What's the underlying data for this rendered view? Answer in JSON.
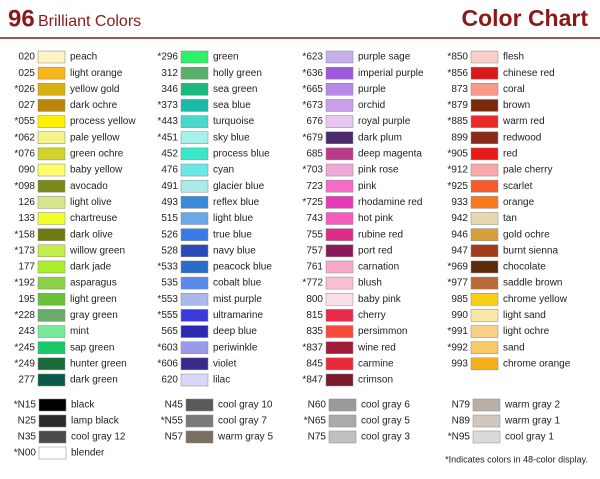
{
  "header": {
    "number": "96",
    "subtitle": "Brilliant Colors",
    "title": "Color Chart"
  },
  "columns": [
    [
      {
        "code": "020",
        "name": "peach",
        "swatch": "#fdf3c4"
      },
      {
        "code": "025",
        "name": "light orange",
        "swatch": "#f7b51c"
      },
      {
        "code": "*026",
        "name": "yellow gold",
        "swatch": "#d8b00f"
      },
      {
        "code": "027",
        "name": "dark ochre",
        "swatch": "#b8860b"
      },
      {
        "code": "*055",
        "name": "process yellow",
        "swatch": "#ffef00"
      },
      {
        "code": "*062",
        "name": "pale yellow",
        "swatch": "#f3f58a"
      },
      {
        "code": "*076",
        "name": "green ochre",
        "swatch": "#d1d32a"
      },
      {
        "code": "090",
        "name": "baby yellow",
        "swatch": "#fffd6a"
      },
      {
        "code": "*098",
        "name": "avocado",
        "swatch": "#7a8a1a"
      },
      {
        "code": "126",
        "name": "light olive",
        "swatch": "#d6e88a"
      },
      {
        "code": "133",
        "name": "chartreuse",
        "swatch": "#f0ff2a"
      },
      {
        "code": "*158",
        "name": "dark olive",
        "swatch": "#6c7c10"
      },
      {
        "code": "*173",
        "name": "willow green",
        "swatch": "#c3ed4a"
      },
      {
        "code": "177",
        "name": "dark jade",
        "swatch": "#a8f02a"
      },
      {
        "code": "*192",
        "name": "asparagus",
        "swatch": "#8ad04a"
      },
      {
        "code": "195",
        "name": "light green",
        "swatch": "#6ac23a"
      },
      {
        "code": "*228",
        "name": "gray green",
        "swatch": "#6aaa6a"
      },
      {
        "code": "243",
        "name": "mint",
        "swatch": "#7ae89a"
      },
      {
        "code": "*245",
        "name": "sap green",
        "swatch": "#1ac86a"
      },
      {
        "code": "*249",
        "name": "hunter green",
        "swatch": "#1a6a3a"
      },
      {
        "code": "277",
        "name": "dark green",
        "swatch": "#0a5a4a"
      }
    ],
    [
      {
        "code": "*296",
        "name": "green",
        "swatch": "#2ef06a"
      },
      {
        "code": "312",
        "name": "holly green",
        "swatch": "#5aae6a"
      },
      {
        "code": "346",
        "name": "sea green",
        "swatch": "#1ab87a"
      },
      {
        "code": "*373",
        "name": "sea blue",
        "swatch": "#1abaaa"
      },
      {
        "code": "*443",
        "name": "turquoise",
        "swatch": "#4ad8ca"
      },
      {
        "code": "*451",
        "name": "sky blue",
        "swatch": "#a8f0ea"
      },
      {
        "code": "452",
        "name": "process blue",
        "swatch": "#3ae8c8"
      },
      {
        "code": "476",
        "name": "cyan",
        "swatch": "#6ae8e8"
      },
      {
        "code": "491",
        "name": "glacier blue",
        "swatch": "#aaeaea"
      },
      {
        "code": "493",
        "name": "reflex blue",
        "swatch": "#3a8ada"
      },
      {
        "code": "515",
        "name": "light blue",
        "swatch": "#6aa8ea"
      },
      {
        "code": "526",
        "name": "true blue",
        "swatch": "#3a7ae8"
      },
      {
        "code": "528",
        "name": "navy blue",
        "swatch": "#2a4aba"
      },
      {
        "code": "*533",
        "name": "peacock blue",
        "swatch": "#2a6aca"
      },
      {
        "code": "535",
        "name": "cobalt blue",
        "swatch": "#5a8aea"
      },
      {
        "code": "*553",
        "name": "mist purple",
        "swatch": "#aab8ea"
      },
      {
        "code": "*555",
        "name": "ultramarine",
        "swatch": "#3a3ada"
      },
      {
        "code": "565",
        "name": "deep blue",
        "swatch": "#2a2ab0"
      },
      {
        "code": "*603",
        "name": "periwinkle",
        "swatch": "#9a9aea"
      },
      {
        "code": "*606",
        "name": "violet",
        "swatch": "#3a2a8a"
      },
      {
        "code": "620",
        "name": "lilac",
        "swatch": "#d8d8f8"
      }
    ],
    [
      {
        "code": "*623",
        "name": "purple sage",
        "swatch": "#c8b0e8"
      },
      {
        "code": "*636",
        "name": "imperial purple",
        "swatch": "#9a5ada"
      },
      {
        "code": "*665",
        "name": "purple",
        "swatch": "#b88ae8"
      },
      {
        "code": "*673",
        "name": "orchid",
        "swatch": "#caa0ea"
      },
      {
        "code": "676",
        "name": "royal purple",
        "swatch": "#e8c8f0"
      },
      {
        "code": "*679",
        "name": "dark plum",
        "swatch": "#4a2a6a"
      },
      {
        "code": "685",
        "name": "deep magenta",
        "swatch": "#ba3a8a"
      },
      {
        "code": "*703",
        "name": "pink rose",
        "swatch": "#f0a8d8"
      },
      {
        "code": "723",
        "name": "pink",
        "swatch": "#f86ac8"
      },
      {
        "code": "*725",
        "name": "rhodamine red",
        "swatch": "#e83ab8"
      },
      {
        "code": "743",
        "name": "hot pink",
        "swatch": "#f85ac0"
      },
      {
        "code": "755",
        "name": "rubine red",
        "swatch": "#e02a8a"
      },
      {
        "code": "757",
        "name": "port red",
        "swatch": "#8a1a5a"
      },
      {
        "code": "761",
        "name": "carnation",
        "swatch": "#f8a8c8"
      },
      {
        "code": "*772",
        "name": "blush",
        "swatch": "#f8c0d0"
      },
      {
        "code": "800",
        "name": "baby pink",
        "swatch": "#fae0ea"
      },
      {
        "code": "815",
        "name": "cherry",
        "swatch": "#e82a4a"
      },
      {
        "code": "835",
        "name": "persimmon",
        "swatch": "#f84a3a"
      },
      {
        "code": "*837",
        "name": "wine red",
        "swatch": "#a01a3a"
      },
      {
        "code": "845",
        "name": "carmine",
        "swatch": "#e82a3a"
      },
      {
        "code": "*847",
        "name": "crimson",
        "swatch": "#7a1a2a"
      }
    ],
    [
      {
        "code": "*850",
        "name": "flesh",
        "swatch": "#f8d0c8"
      },
      {
        "code": "*856",
        "name": "chinese red",
        "swatch": "#d81a1a"
      },
      {
        "code": "873",
        "name": "coral",
        "swatch": "#f89a8a"
      },
      {
        "code": "*879",
        "name": "brown",
        "swatch": "#7a2a0a"
      },
      {
        "code": "*885",
        "name": "warm red",
        "swatch": "#e82a2a"
      },
      {
        "code": "899",
        "name": "redwood",
        "swatch": "#8a2a1a"
      },
      {
        "code": "*905",
        "name": "red",
        "swatch": "#e81a1a"
      },
      {
        "code": "*912",
        "name": "pale cherry",
        "swatch": "#f8a8a8"
      },
      {
        "code": "*925",
        "name": "scarlet",
        "swatch": "#f85a2a"
      },
      {
        "code": "933",
        "name": "orange",
        "swatch": "#f87a1a"
      },
      {
        "code": "942",
        "name": "tan",
        "swatch": "#e8d8b0"
      },
      {
        "code": "946",
        "name": "gold ochre",
        "swatch": "#d8a03a"
      },
      {
        "code": "947",
        "name": "burnt sienna",
        "swatch": "#a03a1a"
      },
      {
        "code": "*969",
        "name": "chocolate",
        "swatch": "#5a2a0a"
      },
      {
        "code": "*977",
        "name": "saddle brown",
        "swatch": "#ba6a3a"
      },
      {
        "code": "985",
        "name": "chrome yellow",
        "swatch": "#f8d01a"
      },
      {
        "code": "990",
        "name": "light sand",
        "swatch": "#f8e8a8"
      },
      {
        "code": "*991",
        "name": "light ochre",
        "swatch": "#f8d08a"
      },
      {
        "code": "*992",
        "name": "sand",
        "swatch": "#f8c86a"
      },
      {
        "code": "993",
        "name": "chrome orange",
        "swatch": "#f8b01a"
      }
    ]
  ],
  "gray_columns": [
    [
      {
        "code": "*N15",
        "name": "black",
        "swatch": "#000000"
      },
      {
        "code": "N25",
        "name": "lamp black",
        "swatch": "#2a2a2a"
      },
      {
        "code": "N35",
        "name": "cool gray 12",
        "swatch": "#4a4a4a"
      },
      {
        "code": "*N00",
        "name": "blender",
        "swatch": "#ffffff"
      }
    ],
    [
      {
        "code": "N45",
        "name": "cool gray 10",
        "swatch": "#5a5a5a"
      },
      {
        "code": "*N55",
        "name": "cool gray 7",
        "swatch": "#7a7a7a"
      },
      {
        "code": "N57",
        "name": "warm gray 5",
        "swatch": "#7a7060"
      }
    ],
    [
      {
        "code": "N60",
        "name": "cool gray 6",
        "swatch": "#9a9a9a"
      },
      {
        "code": "*N65",
        "name": "cool gray 5",
        "swatch": "#aaaaaa"
      },
      {
        "code": "N75",
        "name": "cool gray 3",
        "swatch": "#c0c0c0"
      }
    ],
    [
      {
        "code": "N79",
        "name": "warm gray 2",
        "swatch": "#b8b0a8"
      },
      {
        "code": "N89",
        "name": "warm gray 1",
        "swatch": "#d0c8c0"
      },
      {
        "code": "*N95",
        "name": "cool gray 1",
        "swatch": "#dadada"
      }
    ]
  ],
  "footnote": "*Indicates colors in 48-color display."
}
